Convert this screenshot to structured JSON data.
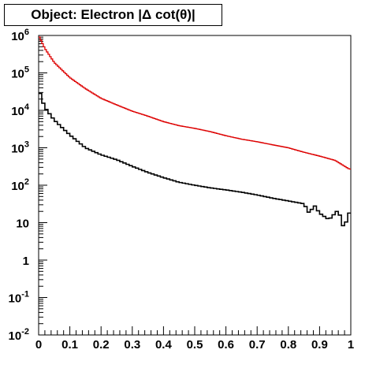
{
  "title": "Object: Electron |Δ cot(θ)|",
  "chart_data": {
    "type": "line",
    "title": "Object: Electron |Δ cot(θ)|",
    "xlabel": "",
    "ylabel": "",
    "xlim": [
      0,
      1
    ],
    "ylim": [
      0.01,
      1000000
    ],
    "y_scale": "log",
    "grid": false,
    "x_ticks": [
      {
        "value": 0,
        "label": "0"
      },
      {
        "value": 0.1,
        "label": "0.1"
      },
      {
        "value": 0.2,
        "label": "0.2"
      },
      {
        "value": 0.3,
        "label": "0.3"
      },
      {
        "value": 0.4,
        "label": "0.4"
      },
      {
        "value": 0.5,
        "label": "0.5"
      },
      {
        "value": 0.6,
        "label": "0.6"
      },
      {
        "value": 0.7,
        "label": "0.7"
      },
      {
        "value": 0.8,
        "label": "0.8"
      },
      {
        "value": 0.9,
        "label": "0.9"
      },
      {
        "value": 1,
        "label": "1"
      }
    ],
    "y_ticks": [
      {
        "value": 0.01,
        "base": "10",
        "exp": "-2"
      },
      {
        "value": 0.1,
        "base": "10",
        "exp": "-1"
      },
      {
        "value": 1,
        "base": "1",
        "exp": ""
      },
      {
        "value": 10,
        "base": "10",
        "exp": ""
      },
      {
        "value": 100,
        "base": "10",
        "exp": "2"
      },
      {
        "value": 1000,
        "base": "10",
        "exp": "3"
      },
      {
        "value": 10000,
        "base": "10",
        "exp": "4"
      },
      {
        "value": 100000,
        "base": "10",
        "exp": "5"
      },
      {
        "value": 1000000,
        "base": "10",
        "exp": "6"
      }
    ],
    "series": [
      {
        "color": "#dd0000",
        "style": "step",
        "x": [
          0.0,
          0.02,
          0.05,
          0.1,
          0.15,
          0.2,
          0.25,
          0.3,
          0.35,
          0.4,
          0.45,
          0.5,
          0.55,
          0.6,
          0.65,
          0.7,
          0.75,
          0.8,
          0.85,
          0.9,
          0.95,
          0.995
        ],
        "y": [
          1000000,
          450000,
          190000,
          75000,
          38000,
          21000,
          14000,
          9500,
          7000,
          5000,
          3900,
          3300,
          2700,
          2100,
          1700,
          1450,
          1200,
          1000,
          760,
          600,
          460,
          270
        ]
      },
      {
        "color": "#000000",
        "style": "step",
        "x": [
          0.0,
          0.01,
          0.02,
          0.05,
          0.1,
          0.15,
          0.2,
          0.25,
          0.3,
          0.35,
          0.4,
          0.45,
          0.5,
          0.55,
          0.6,
          0.65,
          0.7,
          0.75,
          0.8,
          0.85,
          0.87,
          0.88,
          0.9,
          0.93,
          0.96,
          0.98,
          0.99,
          1.0
        ],
        "y": [
          40000,
          20000,
          12000,
          5500,
          2200,
          1000,
          650,
          480,
          320,
          220,
          160,
          120,
          100,
          85,
          75,
          65,
          55,
          45,
          38,
          32,
          16,
          32,
          18,
          12,
          22,
          6,
          18,
          18
        ]
      }
    ]
  }
}
